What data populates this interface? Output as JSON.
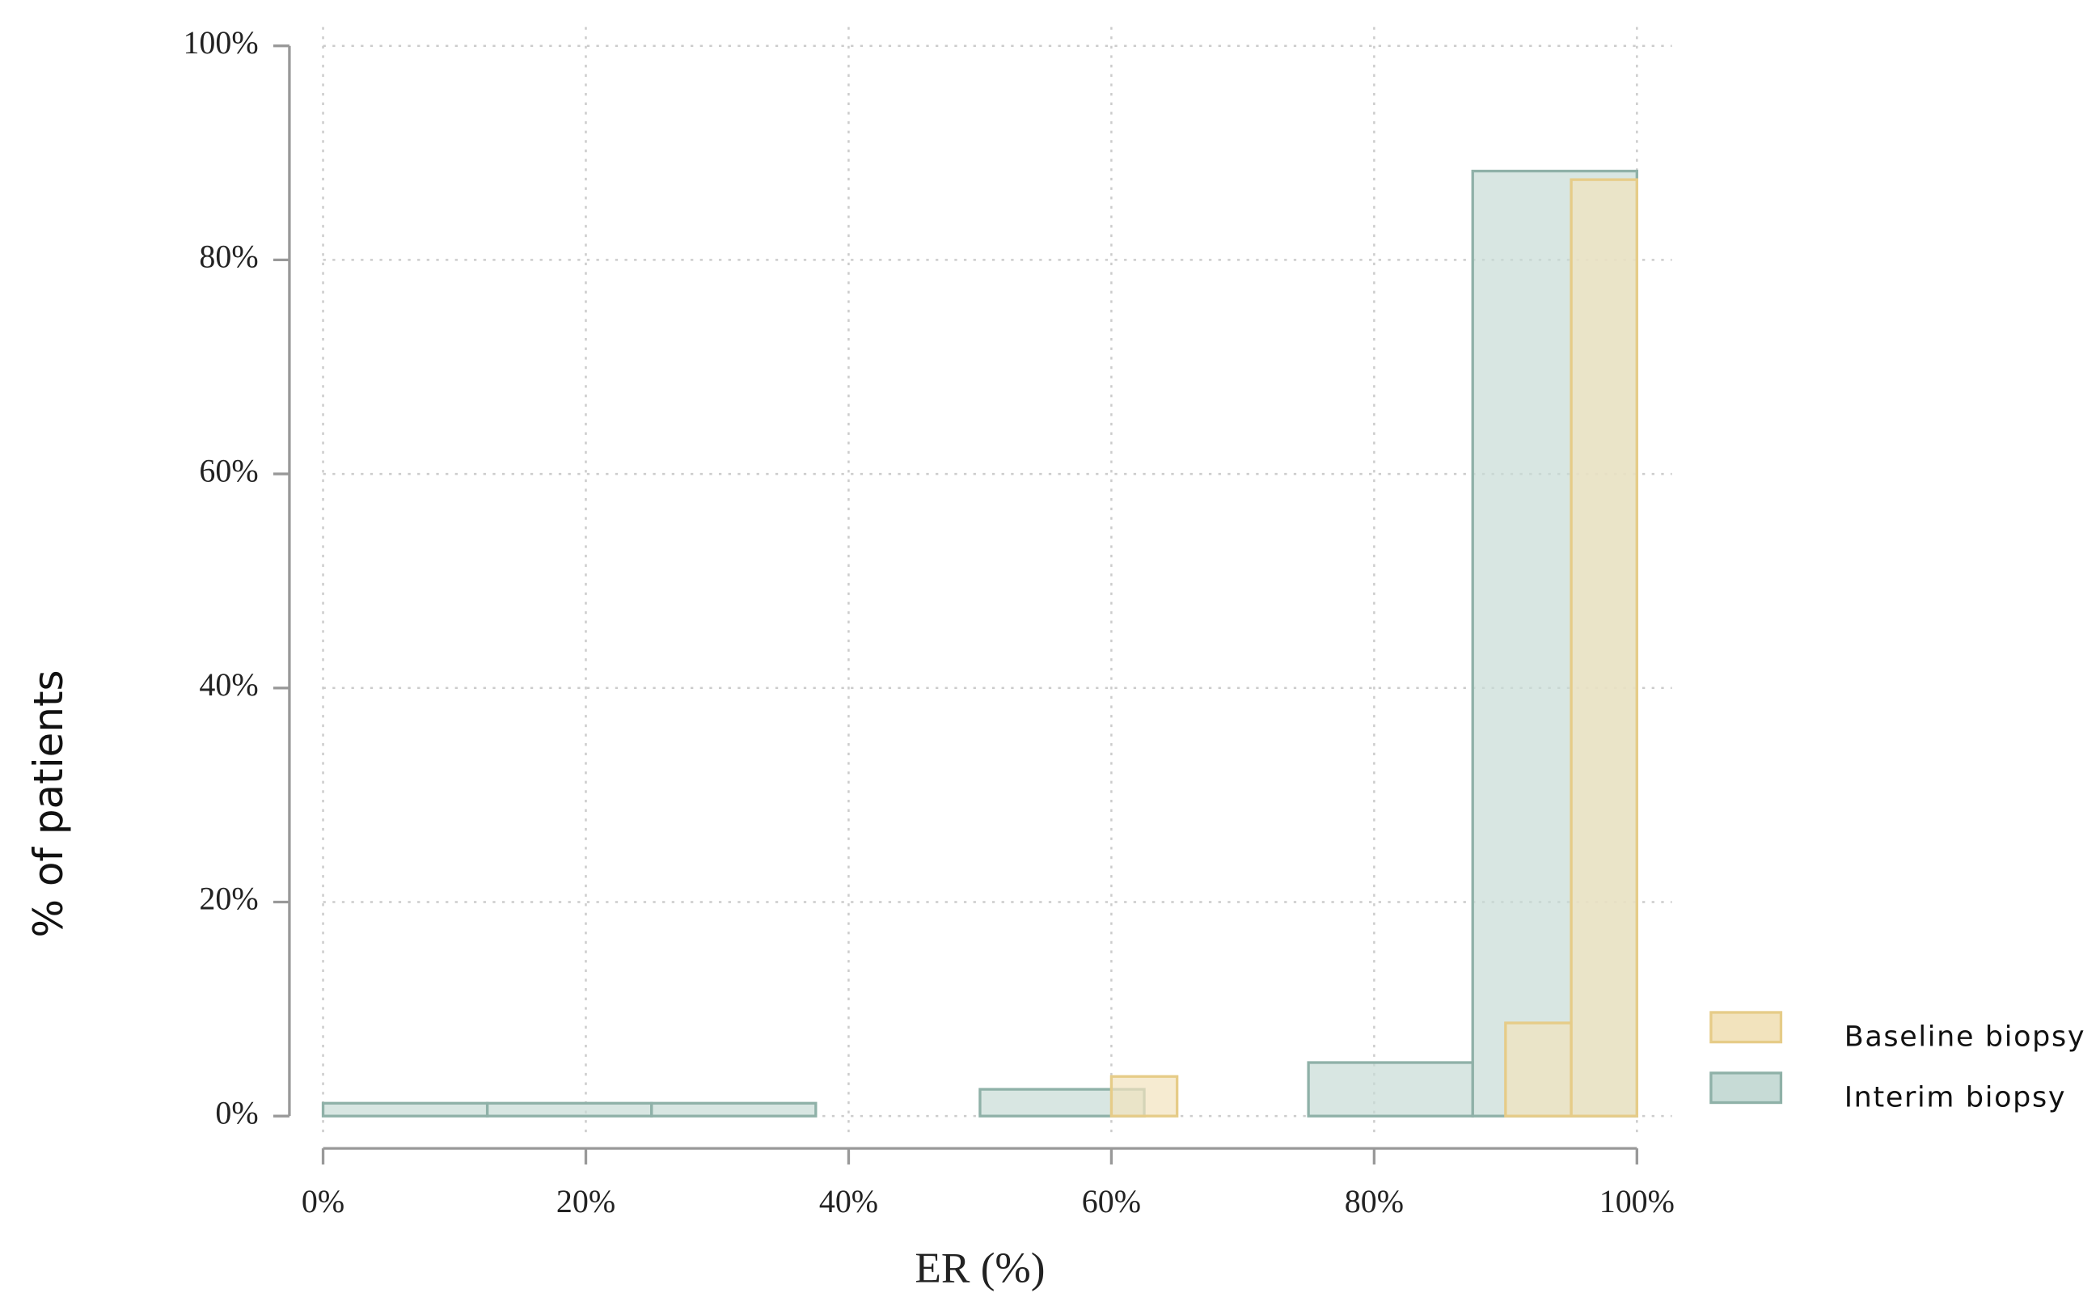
{
  "chart_data": {
    "type": "histogram",
    "xlabel": "ER (%)",
    "ylabel": "% of patients",
    "xlim": [
      0,
      100
    ],
    "ylim": [
      0,
      100
    ],
    "xticks": [
      {
        "value": 0,
        "label": "0%"
      },
      {
        "value": 20,
        "label": "20%"
      },
      {
        "value": 40,
        "label": "40%"
      },
      {
        "value": 60,
        "label": "60%"
      },
      {
        "value": 80,
        "label": "80%"
      },
      {
        "value": 100,
        "label": "100%"
      }
    ],
    "yticks": [
      {
        "value": 0,
        "label": "0%"
      },
      {
        "value": 20,
        "label": "20%"
      },
      {
        "value": 40,
        "label": "40%"
      },
      {
        "value": 60,
        "label": "60%"
      },
      {
        "value": 80,
        "label": "80%"
      },
      {
        "value": 100,
        "label": "100%"
      }
    ],
    "grid": true,
    "legend": "right",
    "series": [
      {
        "name": "Interim biopsy",
        "color": "#c7dbd6",
        "edgecolor": "#8fb1a8",
        "bins": [
          0,
          12.5,
          25,
          37.5,
          50,
          62.5,
          75,
          87.5,
          100
        ],
        "values": [
          1.2,
          1.2,
          1.2,
          0,
          2.5,
          0,
          5,
          88.3
        ]
      },
      {
        "name": "Baseline biopsy",
        "color": "#f2e3bd",
        "edgecolor": "#e6cc88",
        "bins": [
          0,
          5,
          10,
          15,
          20,
          25,
          30,
          35,
          40,
          45,
          50,
          55,
          60,
          65,
          70,
          75,
          80,
          85,
          90,
          95,
          100
        ],
        "values": [
          0,
          0,
          0,
          0,
          0,
          0,
          0,
          0,
          0,
          0,
          0,
          0,
          3.7,
          0,
          0,
          0,
          0,
          0,
          8.7,
          87.5
        ]
      }
    ]
  }
}
